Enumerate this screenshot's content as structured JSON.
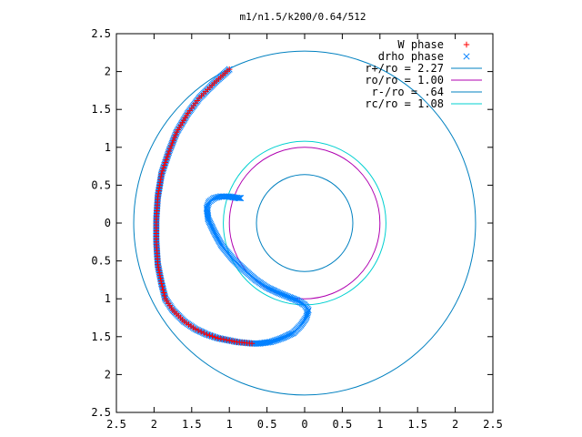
{
  "chart_data": {
    "type": "scatter",
    "title": "m1/n1.5/k200/0.64/512",
    "xlim": [
      -2.5,
      2.5
    ],
    "ylim": [
      -2.5,
      2.5
    ],
    "x_tick_values": [
      -2.5,
      -2,
      -1.5,
      -1,
      -0.5,
      0,
      0.5,
      1,
      1.5,
      2,
      2.5
    ],
    "x_tick_labels": [
      "2.5",
      "2",
      "1.5",
      "1",
      "0.5",
      "0",
      "0.5",
      "1",
      "1.5",
      "2",
      "2.5"
    ],
    "y_tick_values": [
      2.5,
      2,
      1.5,
      1,
      0.5,
      0,
      -0.5,
      -1,
      -1.5,
      -2,
      -2.5
    ],
    "y_tick_labels": [
      "2.5",
      "2",
      "1.5",
      "1",
      "0.5",
      "0",
      "0.5",
      "1",
      "1.5",
      "2",
      "2.5"
    ],
    "legend_position": "top-right",
    "grid": false,
    "series": [
      {
        "name": "W phase",
        "marker": "plus",
        "color": "#ff0000",
        "x": [
          -1.0,
          -1.2,
          -1.4,
          -1.55,
          -1.7,
          -1.8,
          -1.9,
          -1.95,
          -1.97,
          -1.97,
          -1.95,
          -1.9,
          -1.85,
          -1.75,
          -1.6,
          -1.45,
          -1.3,
          -1.15,
          -1.0,
          -0.9,
          -0.8,
          -0.7
        ],
        "y": [
          2.03,
          1.85,
          1.65,
          1.45,
          1.2,
          0.95,
          0.65,
          0.35,
          0.05,
          -0.25,
          -0.55,
          -0.8,
          -1.0,
          -1.15,
          -1.3,
          -1.4,
          -1.47,
          -1.52,
          -1.55,
          -1.57,
          -1.58,
          -1.59
        ]
      },
      {
        "name": "drho phase",
        "marker": "cross",
        "color": "#0080ff",
        "x": [
          -1.0,
          -1.2,
          -1.4,
          -1.55,
          -1.7,
          -1.8,
          -1.9,
          -1.95,
          -1.97,
          -1.97,
          -1.95,
          -1.9,
          -1.85,
          -1.75,
          -1.6,
          -1.45,
          -1.3,
          -1.15,
          -1.0,
          -0.9,
          -0.8,
          -0.7,
          -0.6,
          -0.45,
          -0.3,
          -0.15,
          -0.05,
          0.02,
          0.05,
          0.0,
          -0.1,
          -0.2,
          -0.35,
          -0.5,
          -0.65,
          -0.8,
          -0.95,
          -1.1,
          -1.2,
          -1.28,
          -1.3,
          -1.27,
          -1.2,
          -1.12,
          -1.05,
          -1.0,
          -0.95,
          -0.88,
          -0.85
        ],
        "y": [
          2.03,
          1.85,
          1.65,
          1.45,
          1.2,
          0.95,
          0.65,
          0.35,
          0.05,
          -0.25,
          -0.55,
          -0.8,
          -1.0,
          -1.15,
          -1.3,
          -1.4,
          -1.47,
          -1.52,
          -1.55,
          -1.57,
          -1.58,
          -1.59,
          -1.59,
          -1.57,
          -1.52,
          -1.45,
          -1.35,
          -1.25,
          -1.15,
          -1.08,
          -1.02,
          -0.98,
          -0.92,
          -0.85,
          -0.75,
          -0.62,
          -0.48,
          -0.3,
          -0.12,
          0.05,
          0.2,
          0.28,
          0.33,
          0.35,
          0.35,
          0.35,
          0.34,
          0.33,
          0.33
        ]
      },
      {
        "name": "r+/ro = 2.27",
        "type": "circle",
        "radius": 2.27,
        "color": "#0080c0"
      },
      {
        "name": "ro/ro = 1.00",
        "type": "circle",
        "radius": 1.0,
        "color": "#b000b0"
      },
      {
        "name": "r-/ro = .64",
        "type": "circle",
        "radius": 0.64,
        "color": "#0080c0"
      },
      {
        "name": "rc/ro = 1.08",
        "type": "circle",
        "radius": 1.08,
        "color": "#00d0d0"
      }
    ]
  }
}
